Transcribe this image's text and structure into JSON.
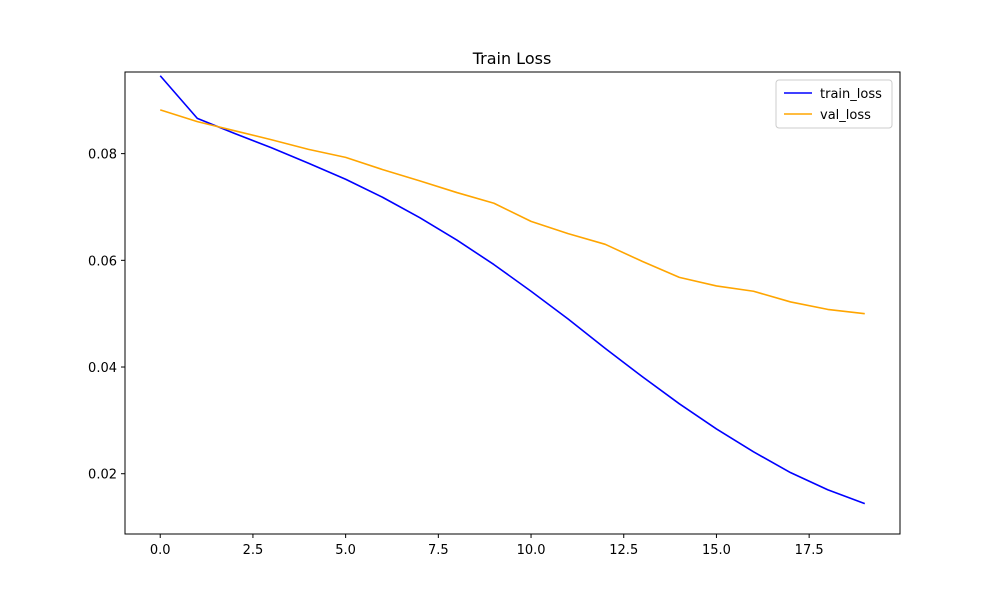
{
  "chart_data": {
    "type": "line",
    "title": "Train Loss",
    "xlabel": "",
    "ylabel": "",
    "x": [
      0,
      1,
      2,
      3,
      4,
      5,
      6,
      7,
      8,
      9,
      10,
      11,
      12,
      13,
      14,
      15,
      16,
      17,
      18,
      19
    ],
    "xlim": [
      -0.95,
      19.95
    ],
    "ylim": [
      0.0087,
      0.0953
    ],
    "x_ticks": [
      0.0,
      2.5,
      5.0,
      7.5,
      10.0,
      12.5,
      15.0,
      17.5
    ],
    "x_tick_labels": [
      "0.0",
      "2.5",
      "5.0",
      "7.5",
      "10.0",
      "12.5",
      "15.0",
      "17.5"
    ],
    "y_ticks": [
      0.02,
      0.04,
      0.06,
      0.08
    ],
    "y_tick_labels": [
      "0.02",
      "0.04",
      "0.06",
      "0.08"
    ],
    "grid": false,
    "legend_position": "top-right",
    "series": [
      {
        "name": "train_loss",
        "color": "#0000ff",
        "values": [
          0.0946,
          0.0866,
          0.0838,
          0.0811,
          0.0782,
          0.0752,
          0.0718,
          0.068,
          0.0638,
          0.0592,
          0.0542,
          0.049,
          0.0435,
          0.0382,
          0.0331,
          0.0284,
          0.0241,
          0.0202,
          0.017,
          0.0144
        ]
      },
      {
        "name": "val_loss",
        "color": "#ffa500",
        "values": [
          0.0882,
          0.086,
          0.0843,
          0.0826,
          0.0808,
          0.0793,
          0.077,
          0.0749,
          0.0727,
          0.0707,
          0.0673,
          0.065,
          0.063,
          0.0598,
          0.0568,
          0.0552,
          0.0542,
          0.0522,
          0.0508,
          0.05
        ]
      }
    ]
  }
}
